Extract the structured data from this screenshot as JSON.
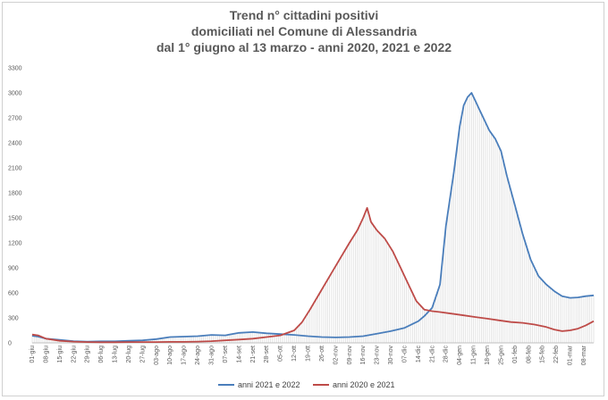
{
  "chart_data": {
    "type": "line",
    "title_lines": [
      "Trend n° cittadini positivi",
      "domiciliati nel Comune di Alessandria",
      "dal 1° giugno al 13 marzo - anni 2020, 2021 e 2022"
    ],
    "xlabel": "",
    "ylabel": "",
    "ylim": [
      0,
      3300
    ],
    "yticks": [
      0,
      300,
      600,
      900,
      1200,
      1500,
      1800,
      2100,
      2400,
      2700,
      3000,
      3300
    ],
    "x_tick_labels": [
      "01-giu",
      "08-giu",
      "15-giu",
      "22-giu",
      "29-giu",
      "06-lug",
      "13-lug",
      "20-lug",
      "27-lug",
      "03-ago",
      "10-ago",
      "17-ago",
      "24-ago",
      "31-ago",
      "07-set",
      "14-set",
      "21-set",
      "28-set",
      "05-ott",
      "12-ott",
      "19-ott",
      "26-ott",
      "02-nov",
      "09-nov",
      "16-nov",
      "23-nov",
      "30-nov",
      "07-dic",
      "14-dic",
      "21-dic",
      "28-dic",
      "04-gen",
      "11-gen",
      "18-gen",
      "25-gen",
      "01-feb",
      "08-feb",
      "15-feb",
      "22-feb",
      "01-mar",
      "08-mar"
    ],
    "x_day_range": [
      0,
      285
    ],
    "legend_position": "bottom",
    "series": [
      {
        "name": "anni 2021 e 2022",
        "color": "#4a7ebb",
        "points": [
          [
            0,
            85
          ],
          [
            3,
            75
          ],
          [
            7,
            50
          ],
          [
            14,
            35
          ],
          [
            21,
            20
          ],
          [
            28,
            15
          ],
          [
            35,
            18
          ],
          [
            42,
            18
          ],
          [
            49,
            25
          ],
          [
            56,
            30
          ],
          [
            63,
            45
          ],
          [
            70,
            70
          ],
          [
            77,
            75
          ],
          [
            84,
            80
          ],
          [
            91,
            95
          ],
          [
            98,
            90
          ],
          [
            105,
            120
          ],
          [
            112,
            130
          ],
          [
            119,
            115
          ],
          [
            126,
            105
          ],
          [
            133,
            95
          ],
          [
            140,
            80
          ],
          [
            147,
            70
          ],
          [
            154,
            65
          ],
          [
            161,
            70
          ],
          [
            168,
            80
          ],
          [
            175,
            110
          ],
          [
            182,
            140
          ],
          [
            189,
            180
          ],
          [
            196,
            260
          ],
          [
            199,
            320
          ],
          [
            203,
            420
          ],
          [
            207,
            700
          ],
          [
            210,
            1400
          ],
          [
            214,
            2050
          ],
          [
            217,
            2600
          ],
          [
            219,
            2850
          ],
          [
            221,
            2950
          ],
          [
            223,
            3000
          ],
          [
            225,
            2900
          ],
          [
            227,
            2800
          ],
          [
            229,
            2700
          ],
          [
            232,
            2550
          ],
          [
            235,
            2450
          ],
          [
            238,
            2300
          ],
          [
            241,
            2000
          ],
          [
            245,
            1650
          ],
          [
            249,
            1300
          ],
          [
            253,
            1000
          ],
          [
            257,
            800
          ],
          [
            261,
            700
          ],
          [
            265,
            620
          ],
          [
            269,
            560
          ],
          [
            273,
            540
          ],
          [
            277,
            545
          ],
          [
            281,
            560
          ],
          [
            285,
            570
          ]
        ]
      },
      {
        "name": "anni 2020 e 2021",
        "color": "#be4b48",
        "points": [
          [
            0,
            100
          ],
          [
            3,
            90
          ],
          [
            7,
            50
          ],
          [
            14,
            25
          ],
          [
            21,
            15
          ],
          [
            28,
            10
          ],
          [
            35,
            8
          ],
          [
            42,
            8
          ],
          [
            49,
            10
          ],
          [
            56,
            10
          ],
          [
            63,
            10
          ],
          [
            70,
            12
          ],
          [
            77,
            12
          ],
          [
            84,
            15
          ],
          [
            91,
            20
          ],
          [
            98,
            30
          ],
          [
            105,
            40
          ],
          [
            112,
            50
          ],
          [
            119,
            70
          ],
          [
            126,
            90
          ],
          [
            133,
            150
          ],
          [
            137,
            250
          ],
          [
            141,
            400
          ],
          [
            146,
            600
          ],
          [
            151,
            800
          ],
          [
            156,
            1000
          ],
          [
            161,
            1200
          ],
          [
            165,
            1350
          ],
          [
            168,
            1500
          ],
          [
            170,
            1620
          ],
          [
            172,
            1450
          ],
          [
            175,
            1350
          ],
          [
            179,
            1250
          ],
          [
            183,
            1100
          ],
          [
            187,
            900
          ],
          [
            191,
            700
          ],
          [
            195,
            500
          ],
          [
            199,
            400
          ],
          [
            203,
            380
          ],
          [
            207,
            370
          ],
          [
            213,
            350
          ],
          [
            219,
            330
          ],
          [
            225,
            310
          ],
          [
            231,
            290
          ],
          [
            237,
            270
          ],
          [
            243,
            250
          ],
          [
            249,
            240
          ],
          [
            255,
            220
          ],
          [
            261,
            190
          ],
          [
            265,
            160
          ],
          [
            269,
            140
          ],
          [
            273,
            150
          ],
          [
            277,
            170
          ],
          [
            281,
            210
          ],
          [
            285,
            260
          ]
        ]
      }
    ]
  }
}
